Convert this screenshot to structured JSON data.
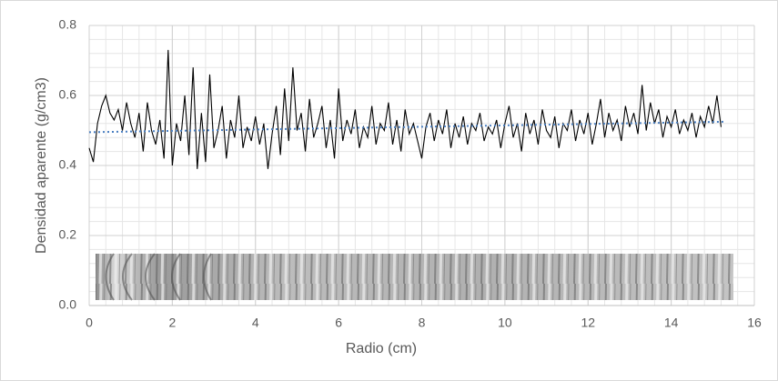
{
  "chart_data": {
    "type": "line",
    "x_label": "Radio (cm)",
    "y_label": "Densidad aparente (g/cm3)",
    "xlim": [
      0,
      16
    ],
    "xticks": [
      0,
      2,
      4,
      6,
      8,
      10,
      12,
      14,
      16
    ],
    "ylim": [
      0,
      0.8
    ],
    "yticks": [
      {
        "value": 0,
        "label": "0.0"
      },
      0.2,
      0.4,
      0.6,
      0.8
    ],
    "grid": true,
    "minor_grid": {
      "x": 0.4,
      "y": 0.04
    },
    "x": [
      0,
      0.1,
      0.2,
      0.3,
      0.4,
      0.5,
      0.6,
      0.7,
      0.8,
      0.9,
      1,
      1.1,
      1.2,
      1.3,
      1.4,
      1.5,
      1.6,
      1.7,
      1.8,
      1.9,
      2,
      2.1,
      2.2,
      2.3,
      2.4,
      2.5,
      2.6,
      2.7,
      2.8,
      2.9,
      3,
      3.1,
      3.2,
      3.3,
      3.4,
      3.5,
      3.6,
      3.7,
      3.8,
      3.9,
      4,
      4.1,
      4.2,
      4.3,
      4.4,
      4.5,
      4.6,
      4.7,
      4.8,
      4.9,
      5,
      5.1,
      5.2,
      5.3,
      5.4,
      5.5,
      5.6,
      5.7,
      5.8,
      5.9,
      6,
      6.1,
      6.2,
      6.3,
      6.4,
      6.5,
      6.6,
      6.7,
      6.8,
      6.9,
      7,
      7.1,
      7.2,
      7.3,
      7.4,
      7.5,
      7.6,
      7.7,
      7.8,
      7.9,
      8,
      8.1,
      8.2,
      8.3,
      8.4,
      8.5,
      8.6,
      8.7,
      8.8,
      8.9,
      9,
      9.1,
      9.2,
      9.3,
      9.4,
      9.5,
      9.6,
      9.7,
      9.8,
      9.9,
      10,
      10.1,
      10.2,
      10.3,
      10.4,
      10.5,
      10.6,
      10.7,
      10.8,
      10.9,
      11,
      11.1,
      11.2,
      11.3,
      11.4,
      11.5,
      11.6,
      11.7,
      11.8,
      11.9,
      12,
      12.1,
      12.2,
      12.3,
      12.4,
      12.5,
      12.6,
      12.7,
      12.8,
      12.9,
      13,
      13.1,
      13.2,
      13.3,
      13.4,
      13.5,
      13.6,
      13.7,
      13.8,
      13.9,
      14,
      14.1,
      14.2,
      14.3,
      14.4,
      14.5,
      14.6,
      14.7,
      14.8,
      14.9,
      15,
      15.1,
      15.2
    ],
    "series": [
      {
        "color": "#000000",
        "values": [
          0.45,
          0.41,
          0.52,
          0.57,
          0.6,
          0.55,
          0.53,
          0.56,
          0.5,
          0.58,
          0.52,
          0.48,
          0.55,
          0.44,
          0.58,
          0.5,
          0.46,
          0.53,
          0.42,
          0.73,
          0.4,
          0.52,
          0.47,
          0.6,
          0.43,
          0.68,
          0.39,
          0.55,
          0.41,
          0.66,
          0.45,
          0.5,
          0.57,
          0.42,
          0.53,
          0.48,
          0.6,
          0.45,
          0.51,
          0.47,
          0.54,
          0.46,
          0.52,
          0.39,
          0.49,
          0.57,
          0.43,
          0.62,
          0.47,
          0.68,
          0.5,
          0.55,
          0.44,
          0.59,
          0.48,
          0.52,
          0.57,
          0.45,
          0.53,
          0.42,
          0.62,
          0.47,
          0.53,
          0.49,
          0.56,
          0.45,
          0.51,
          0.48,
          0.57,
          0.46,
          0.52,
          0.5,
          0.58,
          0.46,
          0.53,
          0.44,
          0.56,
          0.49,
          0.52,
          0.47,
          0.42,
          0.51,
          0.55,
          0.47,
          0.53,
          0.49,
          0.56,
          0.45,
          0.52,
          0.48,
          0.54,
          0.46,
          0.52,
          0.5,
          0.55,
          0.47,
          0.51,
          0.49,
          0.53,
          0.45,
          0.52,
          0.57,
          0.48,
          0.52,
          0.44,
          0.55,
          0.49,
          0.53,
          0.46,
          0.56,
          0.5,
          0.48,
          0.54,
          0.45,
          0.52,
          0.5,
          0.56,
          0.47,
          0.53,
          0.49,
          0.55,
          0.46,
          0.52,
          0.59,
          0.48,
          0.55,
          0.5,
          0.53,
          0.47,
          0.57,
          0.51,
          0.55,
          0.49,
          0.63,
          0.5,
          0.58,
          0.52,
          0.56,
          0.48,
          0.54,
          0.51,
          0.56,
          0.49,
          0.53,
          0.5,
          0.55,
          0.48,
          0.54,
          0.51,
          0.57,
          0.52,
          0.6,
          0.51
        ]
      }
    ],
    "trendline": {
      "color": "#4a7fc1",
      "x": [
        0,
        15.3
      ],
      "values": [
        0.495,
        0.525
      ]
    }
  }
}
